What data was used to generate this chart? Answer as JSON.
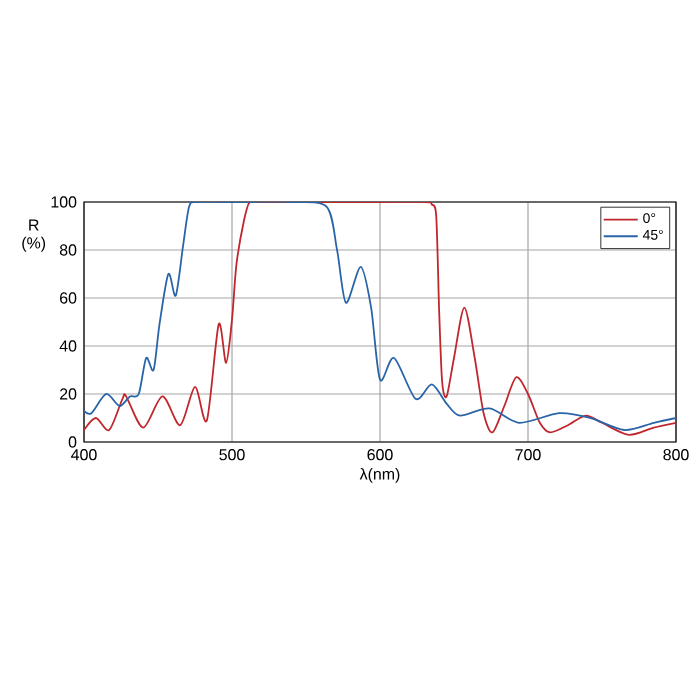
{
  "chart_data": {
    "type": "line",
    "xlabel": "λ(nm)",
    "ylabel": "R (%)",
    "xlim": [
      400,
      800
    ],
    "ylim": [
      0,
      100
    ],
    "xticks": [
      400,
      500,
      600,
      700,
      800
    ],
    "yticks": [
      0,
      20,
      40,
      60,
      80,
      100
    ],
    "grid": true,
    "legend": "top right",
    "marker": "none",
    "line_style": "solid",
    "series": [
      {
        "name": "0°",
        "color": "#c0272d",
        "x": [
          400,
          408,
          417,
          426,
          428.5,
          440,
          453,
          465,
          475,
          483,
          491,
          496,
          500,
          503,
          508,
          512,
          520,
          560,
          600,
          631,
          635,
          638,
          640,
          642,
          645,
          650,
          657,
          664,
          670,
          676,
          684,
          692,
          700,
          708,
          715,
          727,
          739,
          750,
          768,
          785,
          800
        ],
        "values": [
          5,
          10,
          5,
          18,
          19,
          6,
          19,
          7,
          23,
          9,
          49,
          33,
          51,
          74,
          92,
          100,
          100,
          100,
          100,
          100,
          99,
          94,
          54,
          25,
          19,
          35,
          56,
          35,
          12,
          4,
          15,
          27,
          20,
          8,
          4,
          7,
          11,
          8,
          3,
          6,
          8
        ]
      },
      {
        "name": "45°",
        "color": "#2a64a8",
        "x": [
          400,
          405,
          415,
          424,
          431,
          437,
          442,
          447,
          451,
          457,
          462,
          467,
          471,
          476,
          500,
          540,
          564,
          571,
          577,
          587,
          594,
          600,
          609.5,
          624,
          635,
          645,
          654,
          674,
          694,
          721,
          742,
          765,
          785,
          800
        ],
        "values": [
          13,
          12,
          20,
          15,
          19,
          20,
          35,
          30,
          49,
          70,
          61,
          82,
          98,
          100,
          100,
          100,
          98,
          80,
          58,
          73,
          56,
          26,
          35,
          18,
          24,
          16,
          11,
          14,
          8,
          12,
          10,
          5,
          8,
          10
        ]
      }
    ]
  }
}
